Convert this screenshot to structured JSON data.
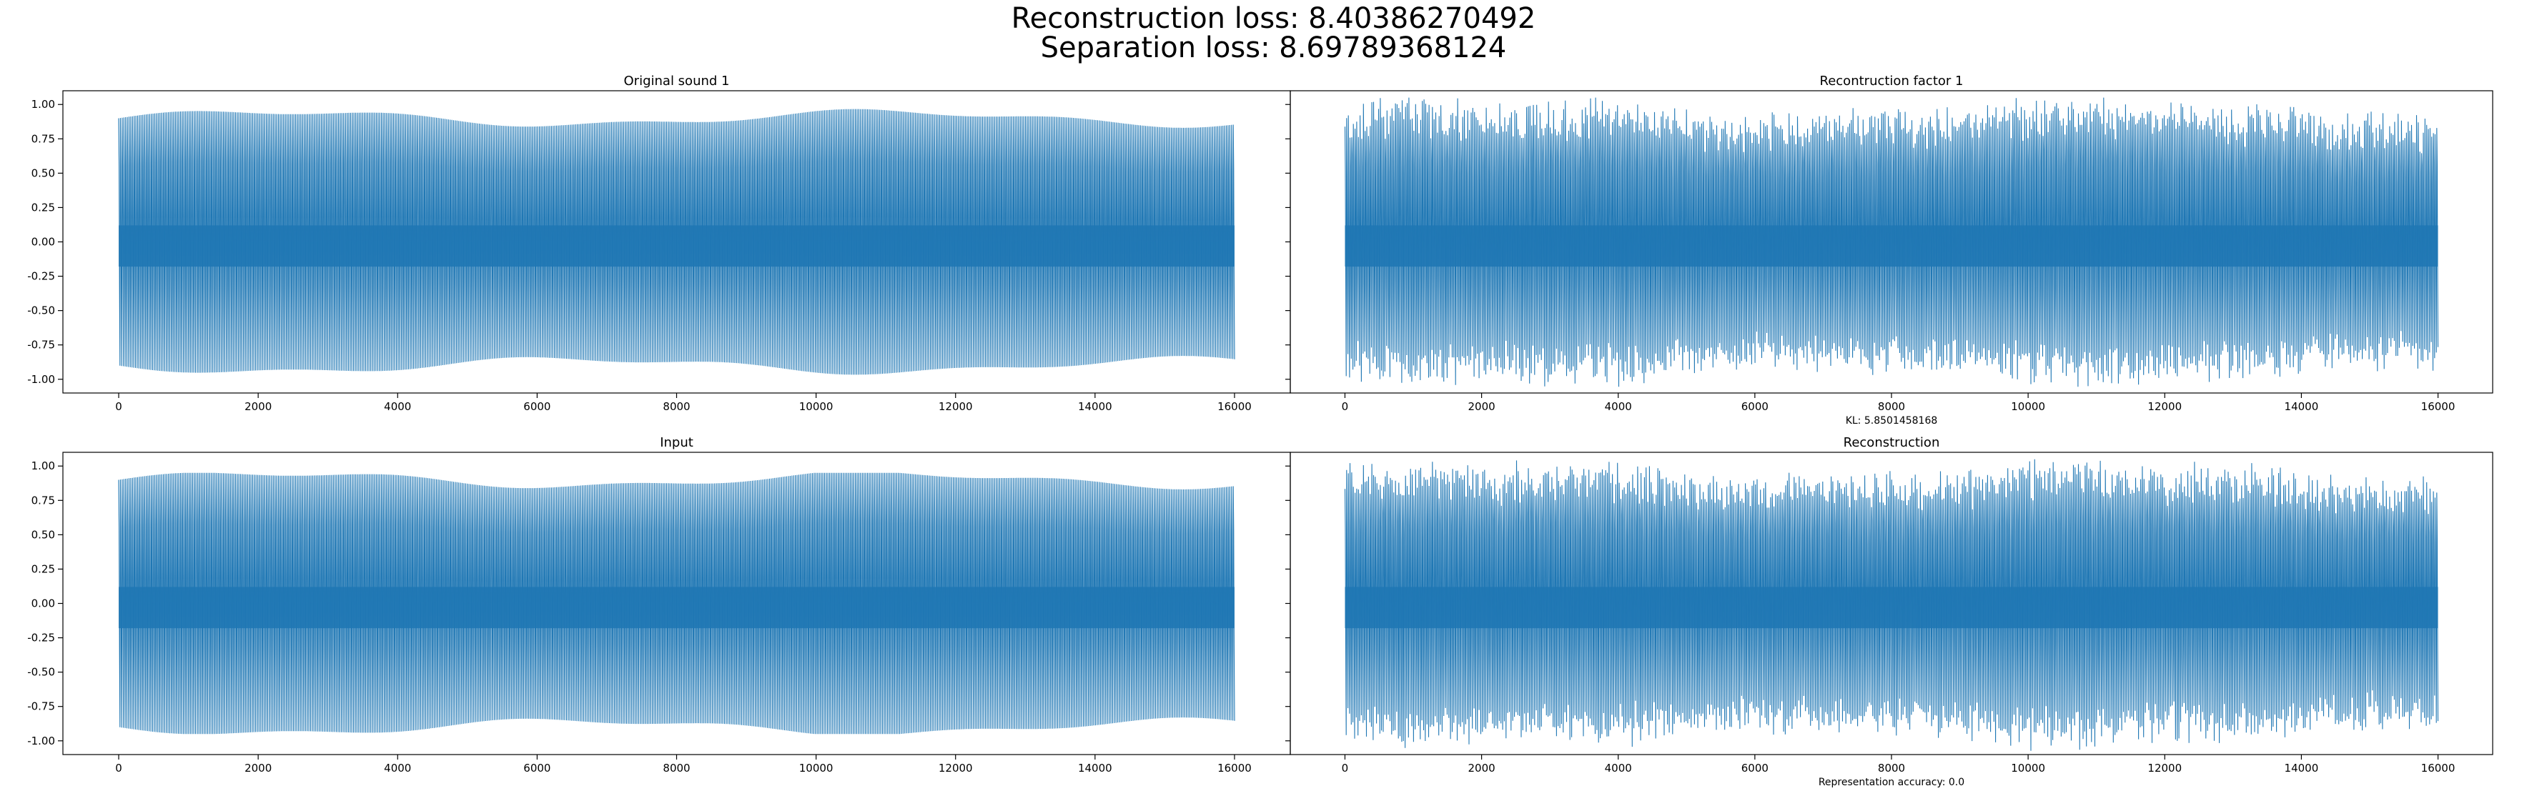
{
  "figure": {
    "title_line1": "Reconstruction loss: 8.40386270492",
    "title_line2": "Separation loss: 8.69789368124"
  },
  "chart_data": [
    {
      "type": "line",
      "title": "Original sound 1",
      "xlabel": "",
      "ylabel": "",
      "xlim": [
        -800,
        16800
      ],
      "ylim": [
        -1.1,
        1.1
      ],
      "xticks": [
        0,
        2000,
        4000,
        6000,
        8000,
        10000,
        12000,
        14000,
        16000
      ],
      "xtick_labels": [
        "0",
        "2000",
        "4000",
        "6000",
        "8000",
        "10000",
        "12000",
        "14000",
        "16000"
      ],
      "yticks": [
        1.0,
        0.75,
        0.5,
        0.25,
        0.0,
        -0.25,
        -0.5,
        -0.75,
        -1.0
      ],
      "ytick_labels": [
        "1.00",
        "0.75",
        "0.50",
        "0.25",
        "0.00",
        "-0.25",
        "-0.50",
        "-0.75",
        "-1.00"
      ],
      "color": "#1f77b4",
      "series": [
        {
          "x_range": [
            0,
            16000
          ],
          "n_samples": 16000,
          "approx_max": 0.97,
          "approx_min": -0.97
        }
      ],
      "annotation": ""
    },
    {
      "type": "line",
      "title": "Recontruction factor 1",
      "xlabel": "",
      "ylabel": "",
      "xlim": [
        -800,
        16800
      ],
      "ylim": [
        -1.1,
        1.1
      ],
      "xticks": [
        0,
        2000,
        4000,
        6000,
        8000,
        10000,
        12000,
        14000,
        16000
      ],
      "xtick_labels": [
        "0",
        "2000",
        "4000",
        "6000",
        "8000",
        "10000",
        "12000",
        "14000",
        "16000"
      ],
      "color": "#1f77b4",
      "series": [
        {
          "x_range": [
            0,
            16000
          ],
          "n_samples": 16000,
          "approx_max": 1.05,
          "approx_min": -1.1
        }
      ],
      "annotation": "KL: 5.8501458168"
    },
    {
      "type": "line",
      "title": "Input",
      "xlabel": "",
      "ylabel": "",
      "xlim": [
        -800,
        16800
      ],
      "ylim": [
        -1.1,
        1.1
      ],
      "xticks": [
        0,
        2000,
        4000,
        6000,
        8000,
        10000,
        12000,
        14000,
        16000
      ],
      "xtick_labels": [
        "0",
        "2000",
        "4000",
        "6000",
        "8000",
        "10000",
        "12000",
        "14000",
        "16000"
      ],
      "yticks": [
        1.0,
        0.75,
        0.5,
        0.25,
        0.0,
        -0.25,
        -0.5,
        -0.75,
        -1.0
      ],
      "ytick_labels": [
        "1.00",
        "0.75",
        "0.50",
        "0.25",
        "0.00",
        "-0.25",
        "-0.50",
        "-0.75",
        "-1.00"
      ],
      "color": "#1f77b4",
      "series": [
        {
          "x_range": [
            0,
            16000
          ],
          "n_samples": 16000,
          "approx_max": 0.95,
          "approx_min": -0.95
        }
      ],
      "annotation": ""
    },
    {
      "type": "line",
      "title": "Reconstruction",
      "xlabel": "",
      "ylabel": "",
      "xlim": [
        -800,
        16800
      ],
      "ylim": [
        -1.1,
        1.1
      ],
      "xticks": [
        0,
        2000,
        4000,
        6000,
        8000,
        10000,
        12000,
        14000,
        16000
      ],
      "xtick_labels": [
        "0",
        "2000",
        "4000",
        "6000",
        "8000",
        "10000",
        "12000",
        "14000",
        "16000"
      ],
      "color": "#1f77b4",
      "series": [
        {
          "x_range": [
            0,
            16000
          ],
          "n_samples": 16000,
          "approx_max": 1.05,
          "approx_min": -1.1
        }
      ],
      "annotation": "Representation accuracy: 0.0"
    }
  ]
}
